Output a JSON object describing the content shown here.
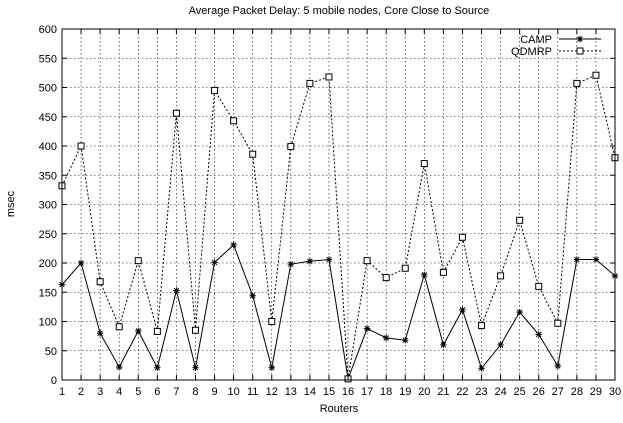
{
  "chart_data": {
    "type": "line",
    "title": "Average Packet Delay: 5 mobile nodes, Core Close to Source",
    "xlabel": "Routers",
    "ylabel": "msec",
    "xlim": [
      1,
      30
    ],
    "ylim": [
      0,
      600
    ],
    "x": [
      1,
      2,
      3,
      4,
      5,
      6,
      7,
      8,
      9,
      10,
      11,
      12,
      13,
      14,
      15,
      16,
      17,
      18,
      19,
      20,
      21,
      22,
      23,
      24,
      25,
      26,
      27,
      28,
      29,
      30
    ],
    "x_ticks": [
      "1",
      "2",
      "3",
      "4",
      "5",
      "6",
      "7",
      "8",
      "9",
      "10",
      "11",
      "12",
      "13",
      "14",
      "15",
      "16",
      "17",
      "18",
      "19",
      "20",
      "21",
      "22",
      "23",
      "24",
      "25",
      "26",
      "27",
      "28",
      "29",
      "30"
    ],
    "y_ticks": [
      "0",
      "50",
      "100",
      "150",
      "200",
      "250",
      "300",
      "350",
      "400",
      "450",
      "500",
      "550",
      "600"
    ],
    "grid": true,
    "legend_position": "top-right",
    "series": [
      {
        "name": "CAMP",
        "style": "solid",
        "marker": "star",
        "values": [
          163,
          200,
          80,
          22,
          84,
          21,
          153,
          21,
          201,
          231,
          144,
          21,
          198,
          203,
          206,
          2,
          88,
          72,
          68,
          180,
          60,
          120,
          20,
          60,
          116,
          78,
          24,
          206,
          206,
          178
        ]
      },
      {
        "name": "QDMRP",
        "style": "dotted",
        "marker": "square",
        "values": [
          332,
          400,
          168,
          91,
          204,
          83,
          456,
          85,
          495,
          443,
          386,
          100,
          399,
          507,
          518,
          2,
          204,
          175,
          191,
          370,
          184,
          244,
          93,
          178,
          273,
          160,
          97,
          507,
          521,
          380
        ]
      }
    ]
  }
}
